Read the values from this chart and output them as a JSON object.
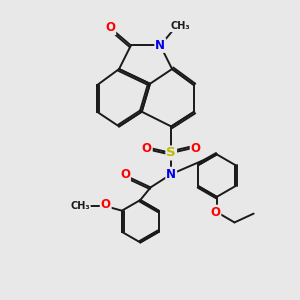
{
  "bg_color": "#e8e8e8",
  "bond_color": "#1a1a1a",
  "bond_width": 1.4,
  "dbo": 0.07,
  "atom_colors": {
    "O": "#ff0000",
    "N": "#0000ee",
    "S": "#bbbb00",
    "C": "#1a1a1a"
  },
  "fs": 8.5
}
